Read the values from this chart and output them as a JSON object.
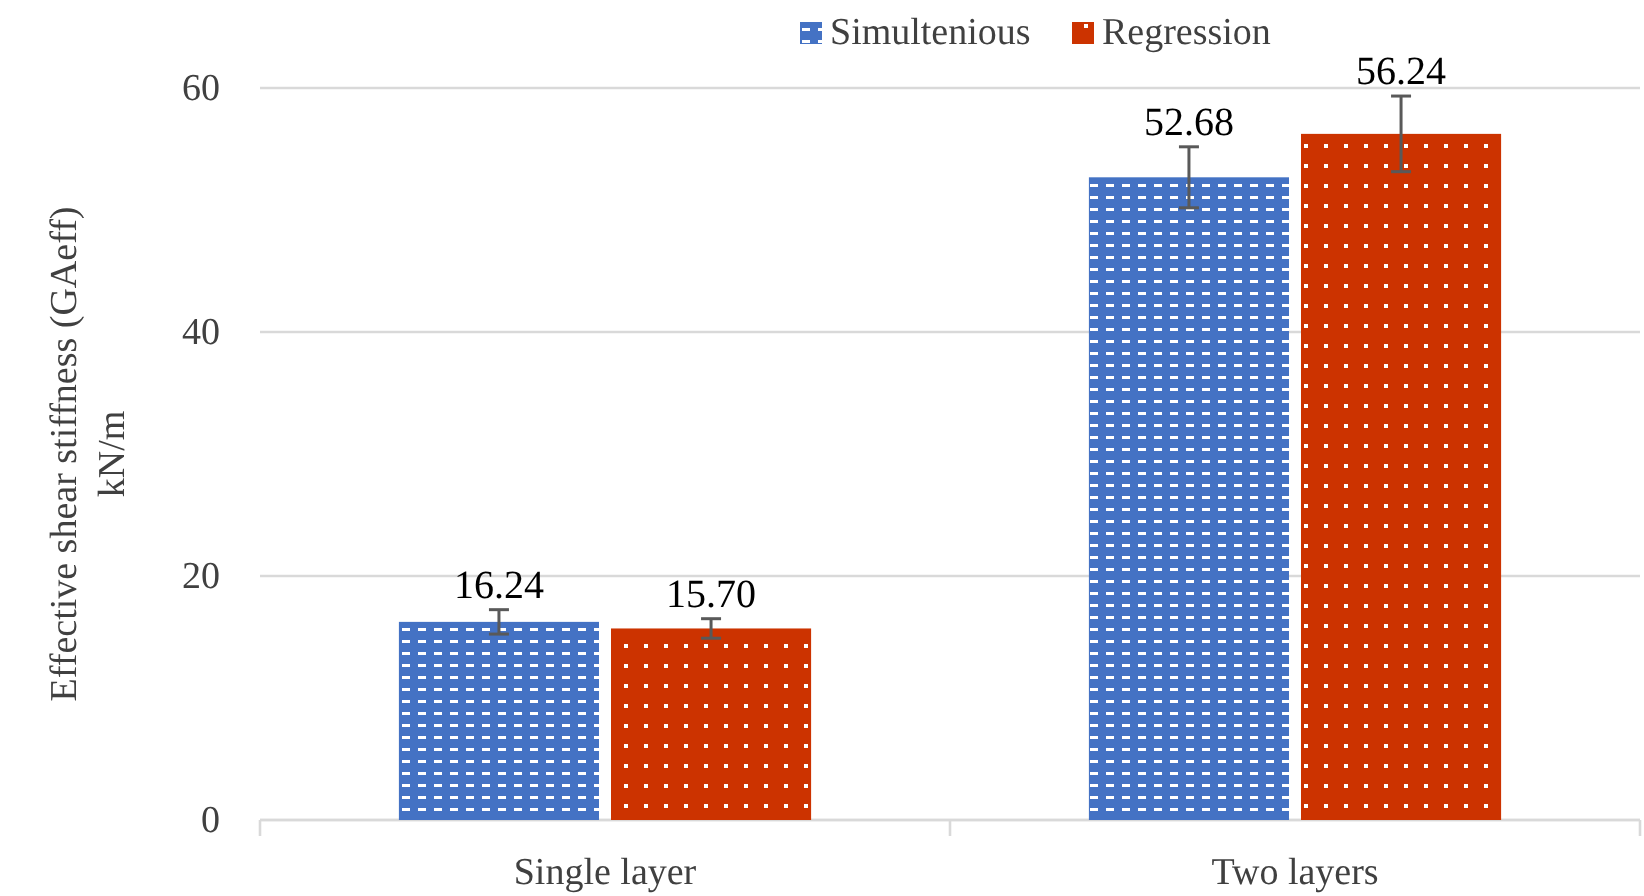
{
  "chart_data": {
    "type": "bar",
    "categories": [
      "Single layer",
      "Two layers"
    ],
    "series": [
      {
        "name": "Simultenious",
        "color": "#4472c4",
        "values": [
          16.24,
          52.68
        ],
        "value_labels": [
          "16.24",
          "52.68"
        ],
        "errors": [
          1,
          2.5
        ]
      },
      {
        "name": "Regression",
        "color": "#cc3300",
        "values": [
          15.7,
          56.24
        ],
        "value_labels": [
          "15.70",
          "56.24"
        ],
        "errors": [
          0.8,
          3.1
        ]
      }
    ],
    "ylabel": "Effective shear stiffness (GAeff) kN/m",
    "ylim": [
      0,
      60
    ],
    "yticks": [
      0,
      20,
      40,
      60
    ],
    "grid": "y",
    "legend": "top"
  }
}
